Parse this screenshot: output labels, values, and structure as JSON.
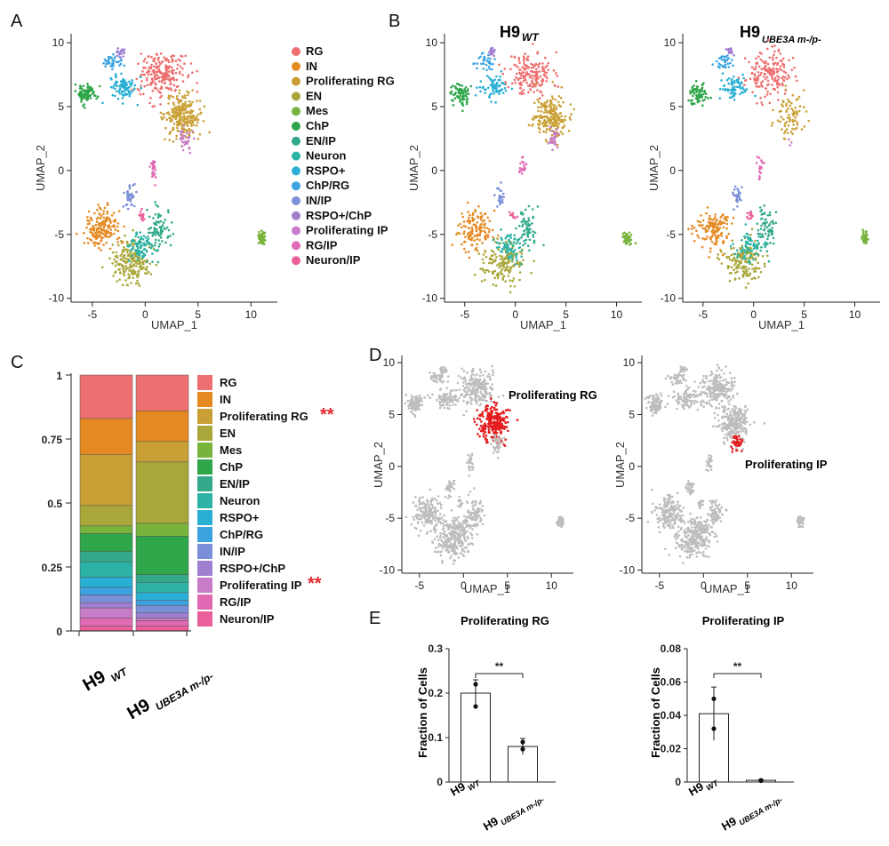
{
  "panels": {
    "A": "A",
    "B": "B",
    "C": "C",
    "D": "D",
    "E": "E"
  },
  "colors": {
    "RG": "#ee6f6f",
    "IN": "#e58a22",
    "Proliferating RG": "#c9a035",
    "EN": "#aaa73a",
    "Mes": "#78b43c",
    "ChP": "#2fa64a",
    "EN/IP": "#34a98a",
    "Neuron": "#2db3a6",
    "RSPO+": "#29afd3",
    "ChP/RG": "#3aa3e0",
    "IN/IP": "#7a8fd8",
    "RSPO+/ChP": "#a07fd0",
    "Proliferating IP": "#c77cc8",
    "RG/IP": "#e06ab4",
    "Neuron/IP": "#e9609a",
    "highlight": "#e41a1c",
    "grey": "#bdbdbd"
  },
  "chart_data": [
    {
      "type": "scatter",
      "panel": "A",
      "xlabel": "UMAP_1",
      "ylabel": "UMAP_2",
      "xlim": [
        -7,
        12.5
      ],
      "ylim": [
        -10.3,
        10.7
      ],
      "xticks": [
        -5,
        0,
        5,
        10
      ],
      "yticks": [
        -10,
        -5,
        0,
        5,
        10
      ],
      "legend": [
        "RG",
        "IN",
        "Proliferating RG",
        "EN",
        "Mes",
        "ChP",
        "EN/IP",
        "Neuron",
        "RSPO+",
        "ChP/RG",
        "IN/IP",
        "RSPO+/ChP",
        "Proliferating IP",
        "RG/IP",
        "Neuron/IP"
      ],
      "clusters": [
        {
          "name": "RG",
          "center": [
            1.5,
            7.5
          ],
          "spread": [
            2.0,
            1.6
          ]
        },
        {
          "name": "IN",
          "center": [
            -4.0,
            -4.5
          ],
          "spread": [
            1.5,
            1.4
          ]
        },
        {
          "name": "Proliferating RG",
          "center": [
            3.5,
            4.2
          ],
          "spread": [
            1.5,
            1.6
          ]
        },
        {
          "name": "EN",
          "center": [
            -1.2,
            -7.2
          ],
          "spread": [
            1.8,
            1.5
          ]
        },
        {
          "name": "Mes",
          "center": [
            11.0,
            -5.3
          ],
          "spread": [
            0.35,
            0.45
          ]
        },
        {
          "name": "ChP",
          "center": [
            -5.5,
            6.0
          ],
          "spread": [
            0.8,
            0.8
          ]
        },
        {
          "name": "EN/IP",
          "center": [
            1.3,
            -4.5
          ],
          "spread": [
            0.9,
            1.5
          ]
        },
        {
          "name": "Neuron",
          "center": [
            -0.5,
            -6.0
          ],
          "spread": [
            1.2,
            1.0
          ]
        },
        {
          "name": "RSPO+",
          "center": [
            -2.0,
            6.5
          ],
          "spread": [
            1.3,
            0.9
          ]
        },
        {
          "name": "ChP/RG",
          "center": [
            -3.0,
            8.5
          ],
          "spread": [
            0.9,
            0.5
          ]
        },
        {
          "name": "IN/IP",
          "center": [
            -1.5,
            -2.0
          ],
          "spread": [
            0.45,
            0.7
          ]
        },
        {
          "name": "RSPO+/ChP",
          "center": [
            -2.3,
            9.3
          ],
          "spread": [
            0.35,
            0.3
          ]
        },
        {
          "name": "Proliferating IP",
          "center": [
            3.8,
            2.3
          ],
          "spread": [
            0.6,
            0.8
          ]
        },
        {
          "name": "RG/IP",
          "center": [
            0.7,
            0.2
          ],
          "spread": [
            0.3,
            0.9
          ]
        },
        {
          "name": "Neuron/IP",
          "center": [
            -0.3,
            -3.5
          ],
          "spread": [
            0.3,
            0.4
          ]
        }
      ]
    },
    {
      "type": "scatter",
      "panel": "B",
      "subplots": [
        {
          "title_main": "H9",
          "title_sub": "WT",
          "xlabel": "UMAP_1",
          "ylabel": "UMAP_2"
        },
        {
          "title_main": "H9",
          "title_sub": "UBE3A m-/p-",
          "xlabel": "UMAP_1",
          "ylabel": "UMAP_2"
        }
      ],
      "xticks": [
        -5,
        0,
        5,
        10
      ],
      "yticks": [
        -10,
        -5,
        0,
        5,
        10
      ]
    },
    {
      "type": "bar",
      "panel": "C",
      "stacked": true,
      "categories": [
        {
          "main": "H9",
          "sub": "WT"
        },
        {
          "main": "H9",
          "sub": "UBE3A m-/p-"
        }
      ],
      "yticks": [
        "0",
        "0.25",
        "0.5",
        "0.75",
        "1"
      ],
      "ylim": [
        0,
        1
      ],
      "series_order_top_to_bottom": [
        "RG",
        "IN",
        "Proliferating RG",
        "EN",
        "Mes",
        "ChP",
        "EN/IP",
        "Neuron",
        "RSPO+",
        "ChP/RG",
        "IN/IP",
        "RSPO+/ChP",
        "Proliferating IP",
        "RG/IP",
        "Neuron/IP"
      ],
      "series": [
        {
          "name": "RG",
          "values": [
            0.17,
            0.14
          ]
        },
        {
          "name": "IN",
          "values": [
            0.14,
            0.12
          ]
        },
        {
          "name": "Proliferating RG",
          "values": [
            0.2,
            0.08
          ]
        },
        {
          "name": "EN",
          "values": [
            0.08,
            0.24
          ]
        },
        {
          "name": "Mes",
          "values": [
            0.03,
            0.05
          ]
        },
        {
          "name": "ChP",
          "values": [
            0.07,
            0.15
          ]
        },
        {
          "name": "EN/IP",
          "values": [
            0.04,
            0.03
          ]
        },
        {
          "name": "Neuron",
          "values": [
            0.06,
            0.04
          ]
        },
        {
          "name": "RSPO+",
          "values": [
            0.04,
            0.03
          ]
        },
        {
          "name": "ChP/RG",
          "values": [
            0.03,
            0.02
          ]
        },
        {
          "name": "IN/IP",
          "values": [
            0.03,
            0.03
          ]
        },
        {
          "name": "RSPO+/ChP",
          "values": [
            0.02,
            0.02
          ]
        },
        {
          "name": "Proliferating IP",
          "values": [
            0.04,
            0.01
          ]
        },
        {
          "name": "RG/IP",
          "values": [
            0.03,
            0.02
          ]
        },
        {
          "name": "Neuron/IP",
          "values": [
            0.02,
            0.02
          ]
        }
      ],
      "significance": [
        {
          "series": "Proliferating RG",
          "label": "**"
        },
        {
          "series": "Proliferating IP",
          "label": "**"
        }
      ]
    },
    {
      "type": "scatter",
      "panel": "D",
      "subplots": [
        {
          "highlight": "Proliferating RG",
          "label": "Proliferating RG",
          "xlabel": "UMAP_1",
          "ylabel": "UMAP_2"
        },
        {
          "highlight": "Proliferating IP",
          "label": "Proliferating IP",
          "xlabel": "UMAP_1",
          "ylabel": "UMAP_2"
        }
      ],
      "xticks": [
        -5,
        0,
        5,
        10
      ],
      "yticks": [
        -10,
        -5,
        0,
        5,
        10
      ]
    },
    {
      "type": "bar",
      "panel": "E",
      "subplots": [
        {
          "title": "Proliferating RG",
          "ylabel": "Fraction of Cells",
          "categories": [
            {
              "main": "H9",
              "sub": "WT"
            },
            {
              "main": "H9",
              "sub": "UBE3A m-/p-"
            }
          ],
          "values": [
            0.2,
            0.08
          ],
          "errors": [
            0.03,
            0.018
          ],
          "points": [
            [
              0.22,
              0.17
            ],
            [
              0.09,
              0.074
            ]
          ],
          "ylim": [
            0,
            0.3
          ],
          "yticks": [
            "0",
            "0.1",
            "0.2",
            "0.3"
          ],
          "significance": "**"
        },
        {
          "title": "Proliferating IP",
          "ylabel": "Fraction of Cells",
          "categories": [
            {
              "main": "H9",
              "sub": "WT"
            },
            {
              "main": "H9",
              "sub": "UBE3A m-/p-"
            }
          ],
          "values": [
            0.041,
            0.001
          ],
          "errors": [
            0.016,
            0.0005
          ],
          "points": [
            [
              0.05,
              0.032
            ],
            [
              0.001,
              0.0008
            ]
          ],
          "ylim": [
            0,
            0.08
          ],
          "yticks": [
            "0",
            "0.02",
            "0.04",
            "0.06",
            "0.08"
          ],
          "significance": "**"
        }
      ]
    }
  ]
}
